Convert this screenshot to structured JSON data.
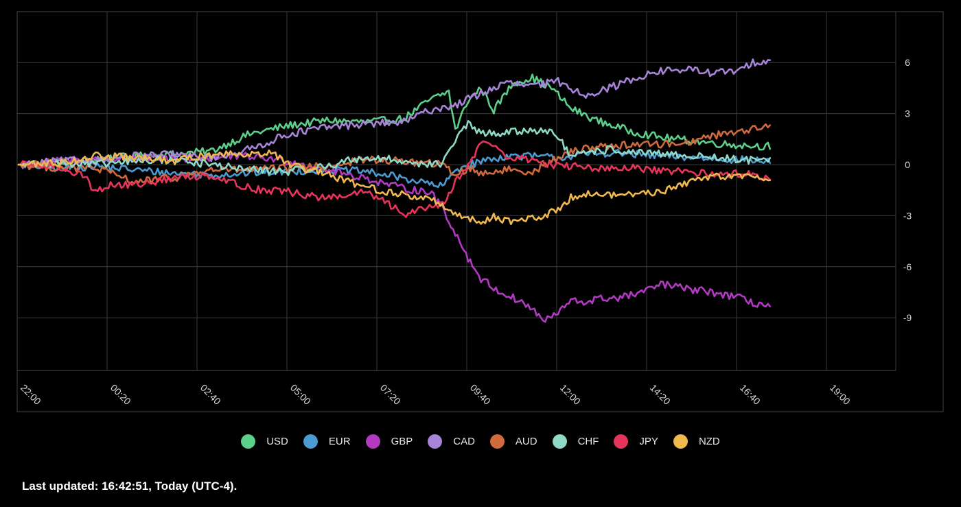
{
  "chart_data": {
    "type": "line",
    "title": "",
    "xlabel": "",
    "ylabel": "",
    "x_start": "22:00",
    "x_end": "21:20",
    "x_step_minutes": 10,
    "x_tick_labels": [
      "22:00",
      "00:20",
      "02:40",
      "05:00",
      "07:20",
      "09:40",
      "12:00",
      "14:20",
      "16:40",
      "19:00"
    ],
    "y_tick_values": [
      6,
      3,
      0,
      -3,
      -6,
      -9
    ],
    "y_tick_labels": [
      "6",
      "3",
      "0",
      "-3",
      "-6",
      "-9"
    ],
    "ylim": [
      -12,
      9
    ],
    "grid": true,
    "legend_position": "bottom",
    "series": [
      {
        "name": "USD",
        "color": "#5ccf8b",
        "anchors": [
          [
            0,
            0
          ],
          [
            6,
            0.1
          ],
          [
            12,
            0.3
          ],
          [
            18,
            0.5
          ],
          [
            24,
            0.6
          ],
          [
            30,
            0.8
          ],
          [
            36,
            1.8
          ],
          [
            42,
            2.3
          ],
          [
            48,
            2.6
          ],
          [
            54,
            2.5
          ],
          [
            60,
            2.7
          ],
          [
            64,
            3.8
          ],
          [
            67,
            4.3
          ],
          [
            68,
            2.0
          ],
          [
            70,
            3.8
          ],
          [
            72,
            4.5
          ],
          [
            74,
            3.2
          ],
          [
            77,
            4.8
          ],
          [
            80,
            5.1
          ],
          [
            83,
            4.5
          ],
          [
            86,
            3.3
          ],
          [
            90,
            2.6
          ],
          [
            95,
            2.0
          ],
          [
            100,
            1.6
          ],
          [
            105,
            1.4
          ],
          [
            110,
            1.2
          ],
          [
            115,
            1.1
          ],
          [
            117,
            1.1
          ]
        ]
      },
      {
        "name": "EUR",
        "color": "#4b9ad1",
        "anchors": [
          [
            0,
            0
          ],
          [
            6,
            -0.2
          ],
          [
            12,
            -0.1
          ],
          [
            18,
            -0.3
          ],
          [
            24,
            -0.5
          ],
          [
            30,
            -0.6
          ],
          [
            36,
            -0.5
          ],
          [
            42,
            -0.4
          ],
          [
            48,
            -0.3
          ],
          [
            54,
            -0.4
          ],
          [
            60,
            -0.8
          ],
          [
            66,
            -1.3
          ],
          [
            68,
            -0.3
          ],
          [
            72,
            0.2
          ],
          [
            76,
            0.5
          ],
          [
            80,
            0.5
          ],
          [
            84,
            0.4
          ],
          [
            88,
            0.6
          ],
          [
            92,
            0.7
          ],
          [
            96,
            0.6
          ],
          [
            100,
            0.5
          ],
          [
            106,
            0.4
          ],
          [
            112,
            0.3
          ],
          [
            117,
            0.2
          ]
        ]
      },
      {
        "name": "GBP",
        "color": "#b239c2",
        "anchors": [
          [
            0,
            0
          ],
          [
            6,
            0.2
          ],
          [
            12,
            0.3
          ],
          [
            18,
            0.4
          ],
          [
            24,
            0.3
          ],
          [
            30,
            0.4
          ],
          [
            36,
            0.5
          ],
          [
            42,
            0.2
          ],
          [
            48,
            -0.3
          ],
          [
            54,
            -0.8
          ],
          [
            60,
            -1.4
          ],
          [
            64,
            -1.6
          ],
          [
            66,
            -2.5
          ],
          [
            67,
            -3.3
          ],
          [
            68,
            -4.0
          ],
          [
            70,
            -5.5
          ],
          [
            72,
            -6.7
          ],
          [
            75,
            -7.5
          ],
          [
            78,
            -8.0
          ],
          [
            80,
            -8.5
          ],
          [
            82,
            -9.2
          ],
          [
            84,
            -8.7
          ],
          [
            86,
            -8.0
          ],
          [
            88,
            -8.1
          ],
          [
            90,
            -7.9
          ],
          [
            94,
            -7.8
          ],
          [
            98,
            -7.4
          ],
          [
            100,
            -7.0
          ],
          [
            104,
            -7.3
          ],
          [
            108,
            -7.5
          ],
          [
            112,
            -7.8
          ],
          [
            114,
            -8.1
          ],
          [
            117,
            -8.3
          ]
        ]
      },
      {
        "name": "CAD",
        "color": "#a784d8",
        "anchors": [
          [
            0,
            0
          ],
          [
            6,
            0.2
          ],
          [
            12,
            0.3
          ],
          [
            18,
            0.5
          ],
          [
            24,
            0.6
          ],
          [
            30,
            0.4
          ],
          [
            36,
            0.9
          ],
          [
            42,
            1.8
          ],
          [
            48,
            2.2
          ],
          [
            54,
            2.4
          ],
          [
            60,
            2.5
          ],
          [
            64,
            3.2
          ],
          [
            68,
            3.5
          ],
          [
            72,
            4.2
          ],
          [
            76,
            4.8
          ],
          [
            80,
            4.6
          ],
          [
            84,
            4.9
          ],
          [
            88,
            4.1
          ],
          [
            92,
            4.5
          ],
          [
            96,
            5.1
          ],
          [
            100,
            5.5
          ],
          [
            104,
            5.6
          ],
          [
            108,
            5.4
          ],
          [
            112,
            5.5
          ],
          [
            115,
            6.1
          ],
          [
            117,
            6.1
          ]
        ]
      },
      {
        "name": "AUD",
        "color": "#d06a3d",
        "anchors": [
          [
            0,
            0
          ],
          [
            6,
            -0.2
          ],
          [
            12,
            -0.2
          ],
          [
            18,
            -1.0
          ],
          [
            24,
            -0.8
          ],
          [
            30,
            -0.3
          ],
          [
            36,
            -0.3
          ],
          [
            42,
            -0.2
          ],
          [
            48,
            -0.1
          ],
          [
            54,
            0.3
          ],
          [
            60,
            0.2
          ],
          [
            66,
            0.0
          ],
          [
            68,
            -0.6
          ],
          [
            70,
            -0.2
          ],
          [
            72,
            -0.5
          ],
          [
            76,
            -0.3
          ],
          [
            80,
            -0.4
          ],
          [
            84,
            0.4
          ],
          [
            88,
            1.0
          ],
          [
            92,
            1.1
          ],
          [
            96,
            1.2
          ],
          [
            100,
            1.2
          ],
          [
            104,
            1.3
          ],
          [
            108,
            1.7
          ],
          [
            112,
            2.0
          ],
          [
            117,
            2.2
          ]
        ]
      },
      {
        "name": "CHF",
        "color": "#8fd9c8",
        "anchors": [
          [
            0,
            0
          ],
          [
            6,
            0.1
          ],
          [
            12,
            0.0
          ],
          [
            18,
            0.2
          ],
          [
            24,
            0.3
          ],
          [
            30,
            0.0
          ],
          [
            36,
            -0.3
          ],
          [
            42,
            -0.4
          ],
          [
            48,
            -0.1
          ],
          [
            52,
            0.3
          ],
          [
            54,
            0.4
          ],
          [
            58,
            0.3
          ],
          [
            62,
            0.1
          ],
          [
            66,
            0.0
          ],
          [
            68,
            1.5
          ],
          [
            70,
            2.4
          ],
          [
            72,
            1.8
          ],
          [
            76,
            1.9
          ],
          [
            80,
            2.0
          ],
          [
            82,
            2.1
          ],
          [
            84,
            1.6
          ],
          [
            86,
            0.5
          ],
          [
            88,
            0.6
          ],
          [
            92,
            0.9
          ],
          [
            96,
            0.7
          ],
          [
            100,
            0.6
          ],
          [
            106,
            0.5
          ],
          [
            112,
            0.3
          ],
          [
            117,
            0.2
          ]
        ]
      },
      {
        "name": "JPY",
        "color": "#e6345a",
        "anchors": [
          [
            0,
            0
          ],
          [
            6,
            -0.1
          ],
          [
            10,
            -0.6
          ],
          [
            12,
            -1.6
          ],
          [
            14,
            -1.2
          ],
          [
            18,
            -1.2
          ],
          [
            24,
            -0.8
          ],
          [
            30,
            -0.6
          ],
          [
            36,
            -1.4
          ],
          [
            42,
            -1.6
          ],
          [
            48,
            -2.0
          ],
          [
            54,
            -1.6
          ],
          [
            58,
            -2.4
          ],
          [
            60,
            -3.0
          ],
          [
            62,
            -2.6
          ],
          [
            66,
            -2.3
          ],
          [
            68,
            -1.0
          ],
          [
            70,
            -0.1
          ],
          [
            72,
            1.3
          ],
          [
            74,
            1.2
          ],
          [
            76,
            0.4
          ],
          [
            80,
            0.3
          ],
          [
            84,
            -0.1
          ],
          [
            88,
            -0.1
          ],
          [
            92,
            -0.3
          ],
          [
            96,
            -0.2
          ],
          [
            100,
            -0.4
          ],
          [
            104,
            -0.4
          ],
          [
            108,
            -0.6
          ],
          [
            112,
            -0.5
          ],
          [
            117,
            -0.7
          ]
        ]
      },
      {
        "name": "NZD",
        "color": "#f0b84d",
        "anchors": [
          [
            0,
            0
          ],
          [
            6,
            0.1
          ],
          [
            12,
            0.5
          ],
          [
            18,
            0.4
          ],
          [
            24,
            0.2
          ],
          [
            30,
            0.6
          ],
          [
            36,
            0.7
          ],
          [
            40,
            0.6
          ],
          [
            42,
            0.0
          ],
          [
            48,
            -0.6
          ],
          [
            54,
            -1.3
          ],
          [
            60,
            -1.8
          ],
          [
            64,
            -2.0
          ],
          [
            68,
            -2.8
          ],
          [
            70,
            -3.2
          ],
          [
            72,
            -3.4
          ],
          [
            74,
            -3.0
          ],
          [
            76,
            -3.3
          ],
          [
            80,
            -3.2
          ],
          [
            82,
            -3.0
          ],
          [
            84,
            -2.6
          ],
          [
            86,
            -1.9
          ],
          [
            88,
            -1.7
          ],
          [
            92,
            -1.8
          ],
          [
            96,
            -1.7
          ],
          [
            100,
            -1.6
          ],
          [
            104,
            -1.1
          ],
          [
            108,
            -0.6
          ],
          [
            112,
            -0.7
          ],
          [
            117,
            -0.8
          ]
        ]
      }
    ]
  },
  "footer": {
    "text": "Last updated: 16:42:51, Today (UTC-4)."
  }
}
